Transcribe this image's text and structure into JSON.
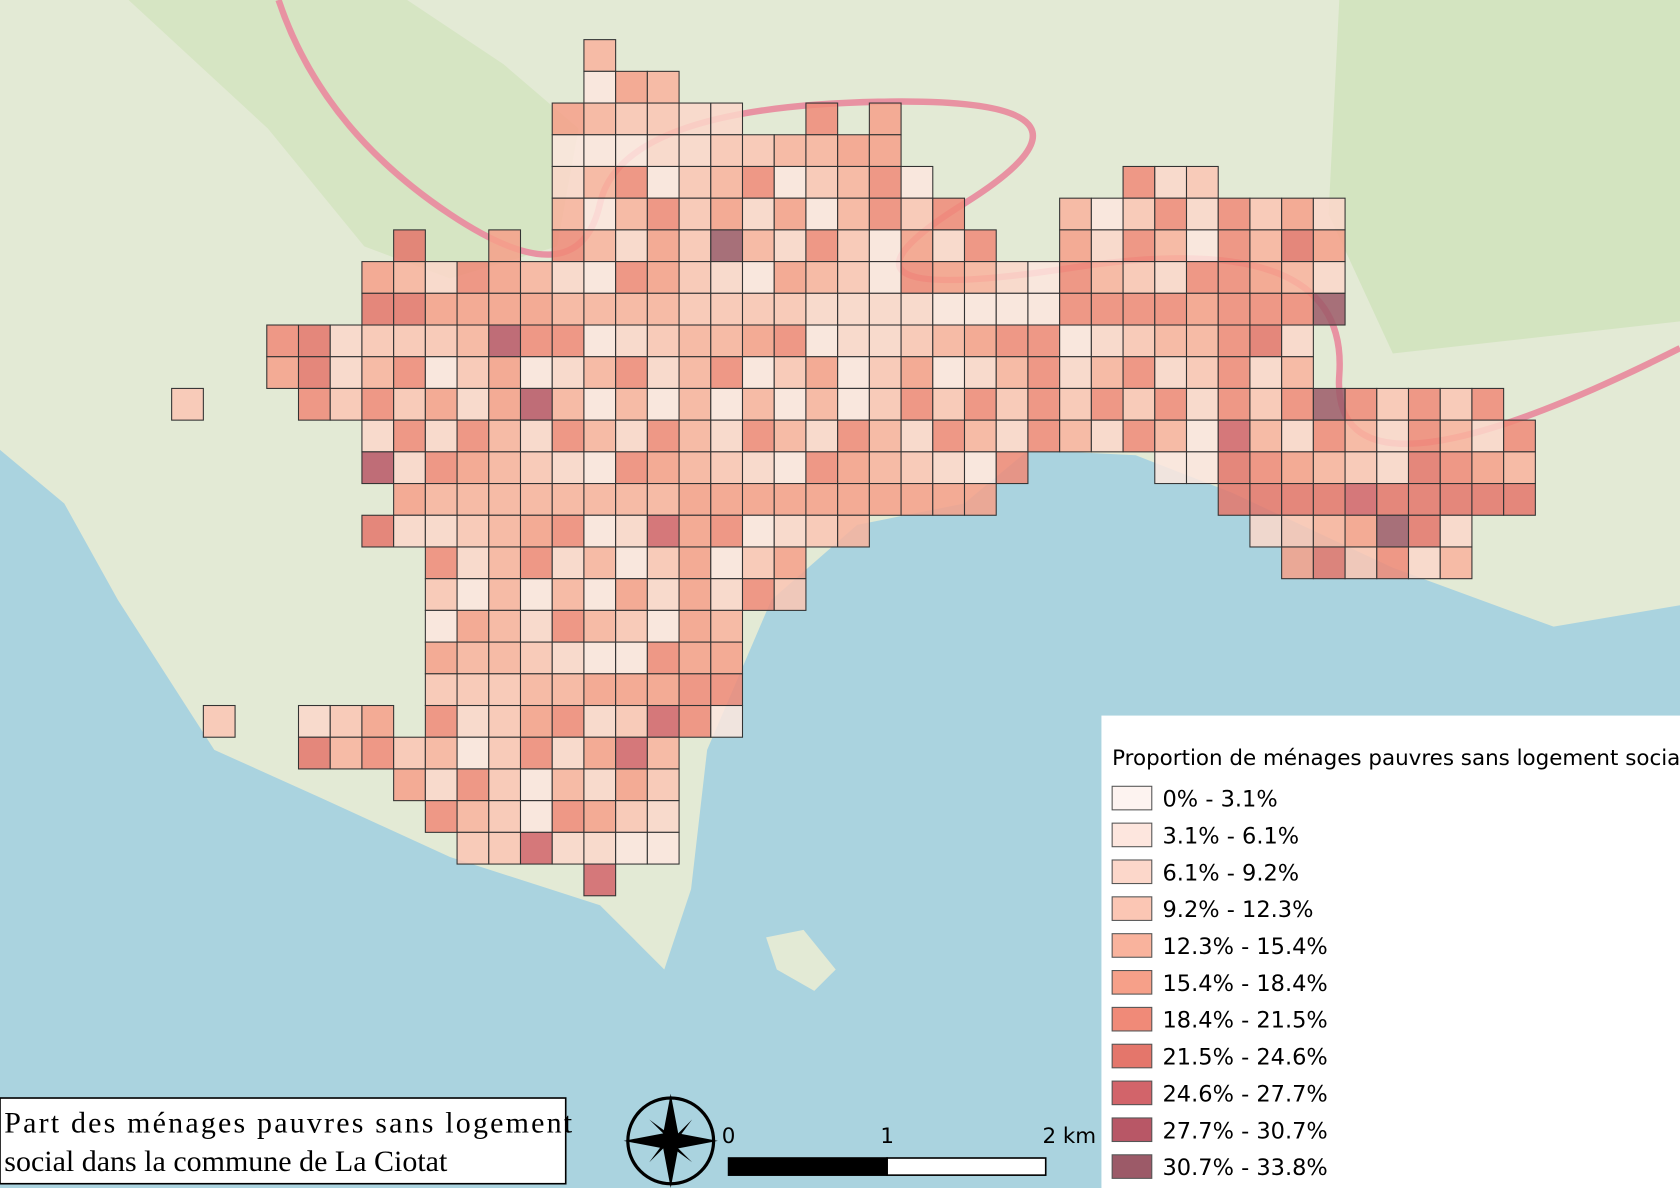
{
  "title": [
    "Part des ménages pauvres sans logement",
    "social dans la commune de La Ciotat"
  ],
  "legend": {
    "title": "Proportion de ménages pauvres sans logement social",
    "classes": [
      {
        "label": "0% - 3.1%",
        "color": "#fdf3f0"
      },
      {
        "label": "3.1% - 6.1%",
        "color": "#fde6de"
      },
      {
        "label": "6.1% - 9.2%",
        "color": "#fcd7ca"
      },
      {
        "label": "9.2% - 12.3%",
        "color": "#fbc6b4"
      },
      {
        "label": "12.3% - 15.4%",
        "color": "#f9b39d"
      },
      {
        "label": "15.4% - 18.4%",
        "color": "#f6a089"
      },
      {
        "label": "18.4% - 21.5%",
        "color": "#f08a78"
      },
      {
        "label": "21.5% - 24.6%",
        "color": "#e4766b"
      },
      {
        "label": "24.6% - 27.7%",
        "color": "#d2646a"
      },
      {
        "label": "27.7% - 30.7%",
        "color": "#b85766"
      },
      {
        "label": "30.7% - 33.8%",
        "color": "#9c5a68"
      }
    ]
  },
  "scale_bar": {
    "ticks": [
      0,
      1,
      {
        "value": 2,
        "label": "2 km"
      }
    ]
  }
}
